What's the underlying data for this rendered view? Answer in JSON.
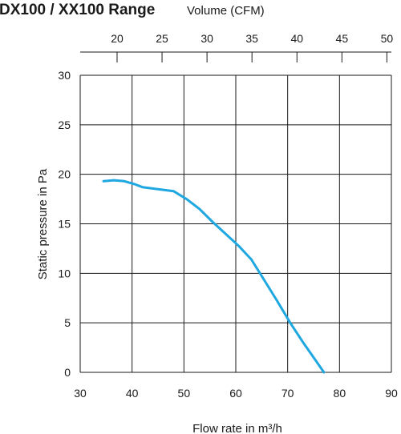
{
  "chart_data": {
    "type": "line",
    "title": "DX100 / XX100 Range",
    "secondary_axis_label": "Volume (CFM)",
    "xlabel": "Flow rate in m³/h",
    "ylabel": "Static pressure in Pa",
    "xlim": [
      30,
      90
    ],
    "ylim": [
      0,
      30
    ],
    "secondary_xlim": [
      15.9,
      50.5
    ],
    "x_ticks": [
      "30",
      "40",
      "50",
      "60",
      "70",
      "80",
      "90"
    ],
    "y_ticks": [
      "0",
      "5",
      "10",
      "15",
      "20",
      "25",
      "30"
    ],
    "secondary_x_ticks": [
      "20",
      "25",
      "30",
      "35",
      "40",
      "45",
      "50"
    ],
    "grid": true,
    "line_color": "#1ea7e1",
    "series": [
      {
        "x": [
          34.5,
          36.5,
          38.5,
          40.5,
          42.0,
          45.0,
          48.0,
          50.5,
          53.0,
          55.5,
          58.0,
          60.5,
          63.0,
          65.5,
          68.0,
          70.5,
          73.0,
          75.0,
          77.0
        ],
        "y": [
          19.3,
          19.4,
          19.3,
          19.0,
          18.7,
          18.5,
          18.3,
          17.5,
          16.5,
          15.2,
          14.0,
          12.8,
          11.4,
          9.3,
          7.2,
          5.0,
          3.0,
          1.5,
          0.0
        ]
      }
    ]
  }
}
